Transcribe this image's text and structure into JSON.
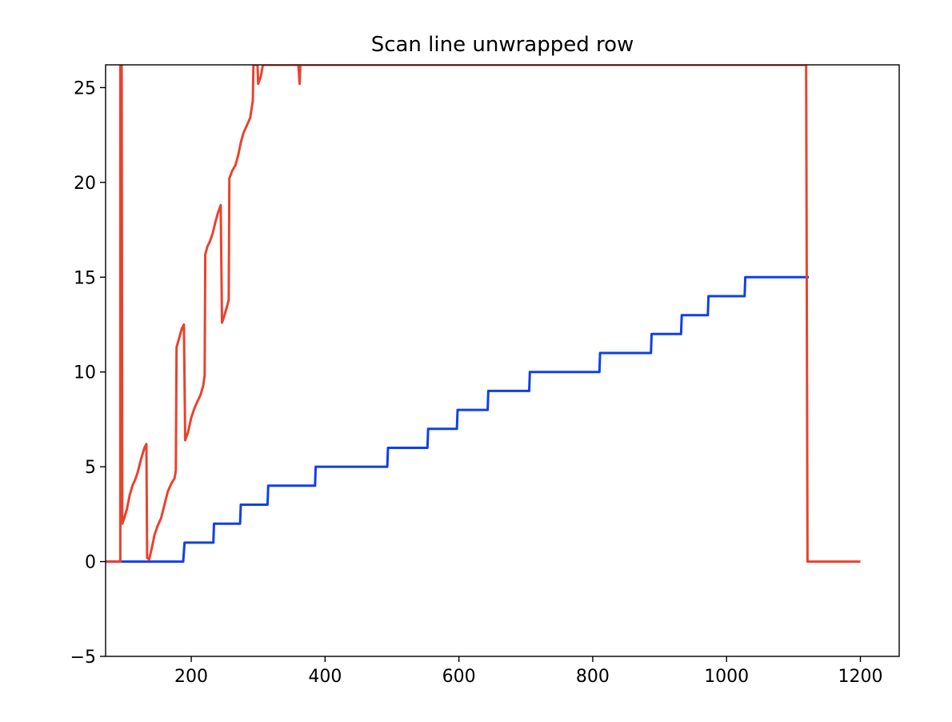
{
  "chart_data": {
    "type": "line",
    "title": "Scan line unwrapped row",
    "xlabel": "",
    "ylabel": "",
    "xlim": [
      72,
      1258
    ],
    "ylim": [
      -5,
      26.2
    ],
    "xticks": [
      200,
      400,
      600,
      800,
      1000,
      1200
    ],
    "yticks": [
      -5,
      0,
      5,
      10,
      15,
      20,
      25
    ],
    "xtick_labels": [
      "200",
      "400",
      "600",
      "800",
      "1000",
      "1200"
    ],
    "ytick_labels": [
      "−5",
      "0",
      "5",
      "10",
      "15",
      "20",
      "25"
    ],
    "grid": false,
    "legend": "none",
    "series": [
      {
        "color": "#1040e8",
        "points": [
          [
            72,
            0
          ],
          [
            100,
            0
          ],
          [
            100,
            0
          ],
          [
            188,
            0
          ],
          [
            190,
            1
          ],
          [
            233,
            1
          ],
          [
            234,
            2
          ],
          [
            273,
            2
          ],
          [
            274,
            3
          ],
          [
            314,
            3
          ],
          [
            315,
            4
          ],
          [
            385,
            4
          ],
          [
            386,
            5
          ],
          [
            493,
            5
          ],
          [
            494,
            6
          ],
          [
            553,
            6
          ],
          [
            554,
            7
          ],
          [
            597,
            7
          ],
          [
            598,
            8
          ],
          [
            643,
            8
          ],
          [
            644,
            9
          ],
          [
            705,
            9
          ],
          [
            706,
            10
          ],
          [
            810,
            10
          ],
          [
            811,
            11
          ],
          [
            887,
            11
          ],
          [
            888,
            12
          ],
          [
            932,
            12
          ],
          [
            933,
            13
          ],
          [
            972,
            13
          ],
          [
            973,
            14
          ],
          [
            1027,
            14
          ],
          [
            1028,
            15
          ],
          [
            1123,
            15
          ]
        ]
      },
      {
        "color": "#e8432d",
        "points": [
          [
            72,
            0
          ],
          [
            94,
            0
          ],
          [
            94,
            26.2
          ],
          [
            96,
            26.2
          ],
          [
            97,
            2
          ],
          [
            100,
            2.3
          ],
          [
            104,
            2.8
          ],
          [
            108,
            3.5
          ],
          [
            112,
            4.0
          ],
          [
            116,
            4.3
          ],
          [
            120,
            4.7
          ],
          [
            125,
            5.4
          ],
          [
            130,
            6.0
          ],
          [
            133,
            6.2
          ],
          [
            134,
            0.2
          ],
          [
            137,
            0.1
          ],
          [
            141,
            0.7
          ],
          [
            145,
            1.4
          ],
          [
            150,
            1.9
          ],
          [
            155,
            2.3
          ],
          [
            160,
            3.0
          ],
          [
            165,
            3.7
          ],
          [
            170,
            4.1
          ],
          [
            175,
            4.4
          ],
          [
            177,
            4.8
          ],
          [
            178,
            11.3
          ],
          [
            182,
            11.8
          ],
          [
            186,
            12.3
          ],
          [
            189,
            12.5
          ],
          [
            191,
            6.4
          ],
          [
            195,
            6.8
          ],
          [
            200,
            7.6
          ],
          [
            205,
            8.1
          ],
          [
            210,
            8.5
          ],
          [
            214,
            8.8
          ],
          [
            218,
            9.3
          ],
          [
            220,
            9.8
          ],
          [
            221,
            16.2
          ],
          [
            224,
            16.6
          ],
          [
            228,
            16.9
          ],
          [
            232,
            17.3
          ],
          [
            236,
            17.9
          ],
          [
            240,
            18.4
          ],
          [
            244,
            18.8
          ],
          [
            246,
            12.6
          ],
          [
            249,
            12.9
          ],
          [
            253,
            13.4
          ],
          [
            256,
            13.8
          ],
          [
            257,
            20.2
          ],
          [
            261,
            20.6
          ],
          [
            266,
            20.9
          ],
          [
            270,
            21.4
          ],
          [
            274,
            22.1
          ],
          [
            278,
            22.6
          ],
          [
            283,
            23.0
          ],
          [
            288,
            23.4
          ],
          [
            292,
            24.3
          ],
          [
            293,
            26.2
          ],
          [
            299,
            26.2
          ],
          [
            300,
            25.2
          ],
          [
            304,
            25.6
          ],
          [
            307,
            26.2
          ],
          [
            360,
            26.2
          ],
          [
            362,
            25.2
          ],
          [
            363,
            26.2
          ],
          [
            1119,
            26.2
          ],
          [
            1121,
            0
          ],
          [
            1200,
            0
          ]
        ]
      }
    ]
  }
}
